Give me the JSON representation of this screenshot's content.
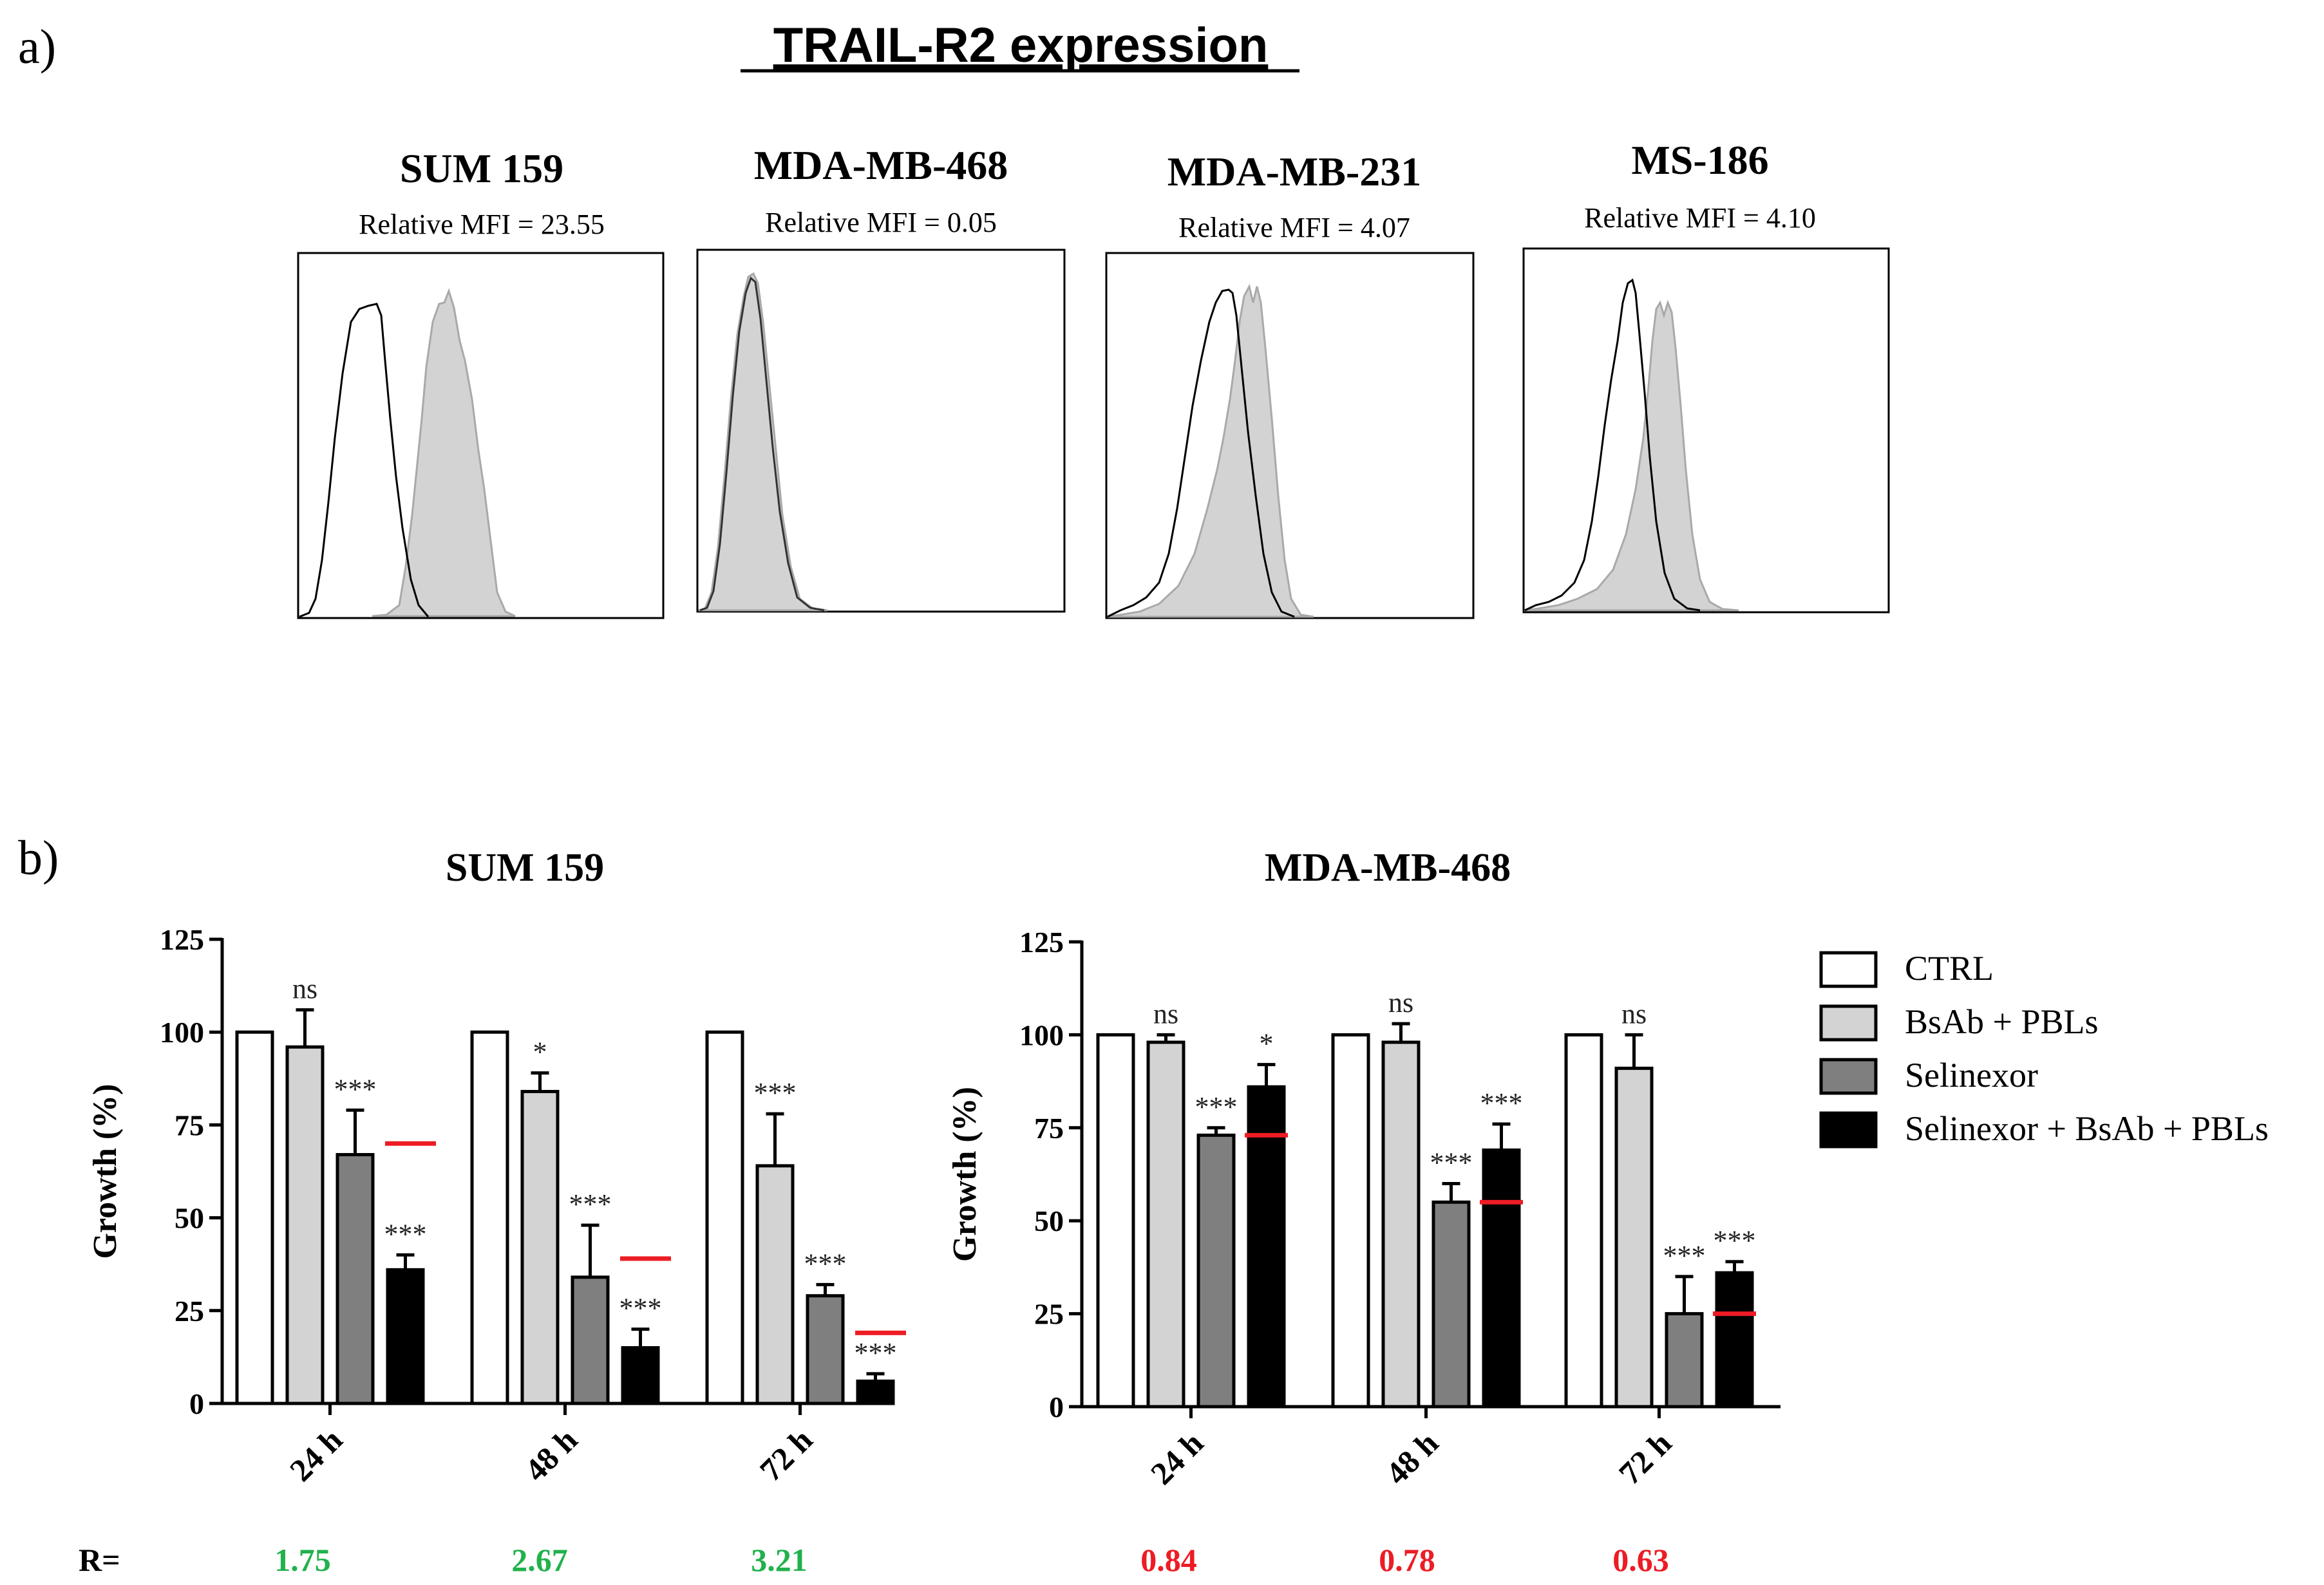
{
  "panel_a": {
    "label": "a)",
    "title": "TRAIL-R2 expression",
    "histograms": [
      {
        "cell_line": "SUM 159",
        "mfi_text": "Relative MFI = 23.55",
        "mfi_value": 23.55
      },
      {
        "cell_line": "MDA-MB-468",
        "mfi_text": "Relative MFI = 0.05",
        "mfi_value": 0.05
      },
      {
        "cell_line": "MDA-MB-231",
        "mfi_text": "Relative MFI = 4.07",
        "mfi_value": 4.07
      },
      {
        "cell_line": "MS-186",
        "mfi_text": "Relative MFI = 4.10",
        "mfi_value": 4.1
      }
    ]
  },
  "panel_b": {
    "label": "b)",
    "r_label": "R=",
    "legend": [
      {
        "name": "CTRL",
        "color": "#ffffff"
      },
      {
        "name": "BsAb + PBLs",
        "color": "#d3d3d3"
      },
      {
        "name": "Selinexor",
        "color": "#7f7f7f"
      },
      {
        "name": "Selinexor + BsAb + PBLs",
        "color": "#000000"
      }
    ],
    "colors": {
      "synergy": "#22b14c",
      "antagonism": "#ed1c24",
      "expected_line": "#ed1c24"
    }
  },
  "chart_data": [
    {
      "type": "bar",
      "title": "SUM 159",
      "ylabel": "Growth (%)",
      "xlabel": "",
      "ylim": [
        0,
        125
      ],
      "yticks": [
        0,
        25,
        50,
        75,
        100,
        125
      ],
      "categories": [
        "24 h",
        "48 h",
        "72 h"
      ],
      "series": [
        {
          "name": "CTRL",
          "values": [
            100,
            100,
            100
          ],
          "errors": [
            0,
            0,
            0
          ],
          "annotations": [
            "",
            "",
            ""
          ]
        },
        {
          "name": "BsAb + PBLs",
          "values": [
            96,
            84,
            64
          ],
          "errors": [
            10,
            5,
            14
          ],
          "annotations": [
            "ns",
            "*",
            "***"
          ]
        },
        {
          "name": "Selinexor",
          "values": [
            67,
            34,
            29
          ],
          "errors": [
            12,
            14,
            3
          ],
          "annotations": [
            "***",
            "***",
            "***"
          ]
        },
        {
          "name": "Selinexor + BsAb + PBLs",
          "values": [
            36,
            15,
            6
          ],
          "errors": [
            4,
            5,
            2
          ],
          "annotations": [
            "***",
            "***",
            "***"
          ]
        }
      ],
      "expected_values": [
        70,
        39,
        19
      ],
      "R": [
        "1.75",
        "2.67",
        "3.21"
      ]
    },
    {
      "type": "bar",
      "title": "MDA-MB-468",
      "ylabel": "Growth (%)",
      "xlabel": "",
      "ylim": [
        0,
        125
      ],
      "yticks": [
        0,
        25,
        50,
        75,
        100,
        125
      ],
      "categories": [
        "24 h",
        "48 h",
        "72 h"
      ],
      "series": [
        {
          "name": "CTRL",
          "values": [
            100,
            100,
            100
          ],
          "errors": [
            0,
            0,
            0
          ],
          "annotations": [
            "",
            "",
            ""
          ]
        },
        {
          "name": "BsAb + PBLs",
          "values": [
            98,
            98,
            91
          ],
          "errors": [
            2,
            5,
            9
          ],
          "annotations": [
            "ns",
            "ns",
            "ns"
          ]
        },
        {
          "name": "Selinexor",
          "values": [
            73,
            55,
            25
          ],
          "errors": [
            2,
            5,
            10
          ],
          "annotations": [
            "***",
            "***",
            "***"
          ]
        },
        {
          "name": "Selinexor + BsAb + PBLs",
          "values": [
            86,
            69,
            36
          ],
          "errors": [
            6,
            7,
            3
          ],
          "annotations": [
            "*",
            "***",
            "***"
          ]
        }
      ],
      "expected_values": [
        73,
        55,
        25
      ],
      "R": [
        "0.84",
        "0.78",
        "0.63"
      ]
    }
  ]
}
